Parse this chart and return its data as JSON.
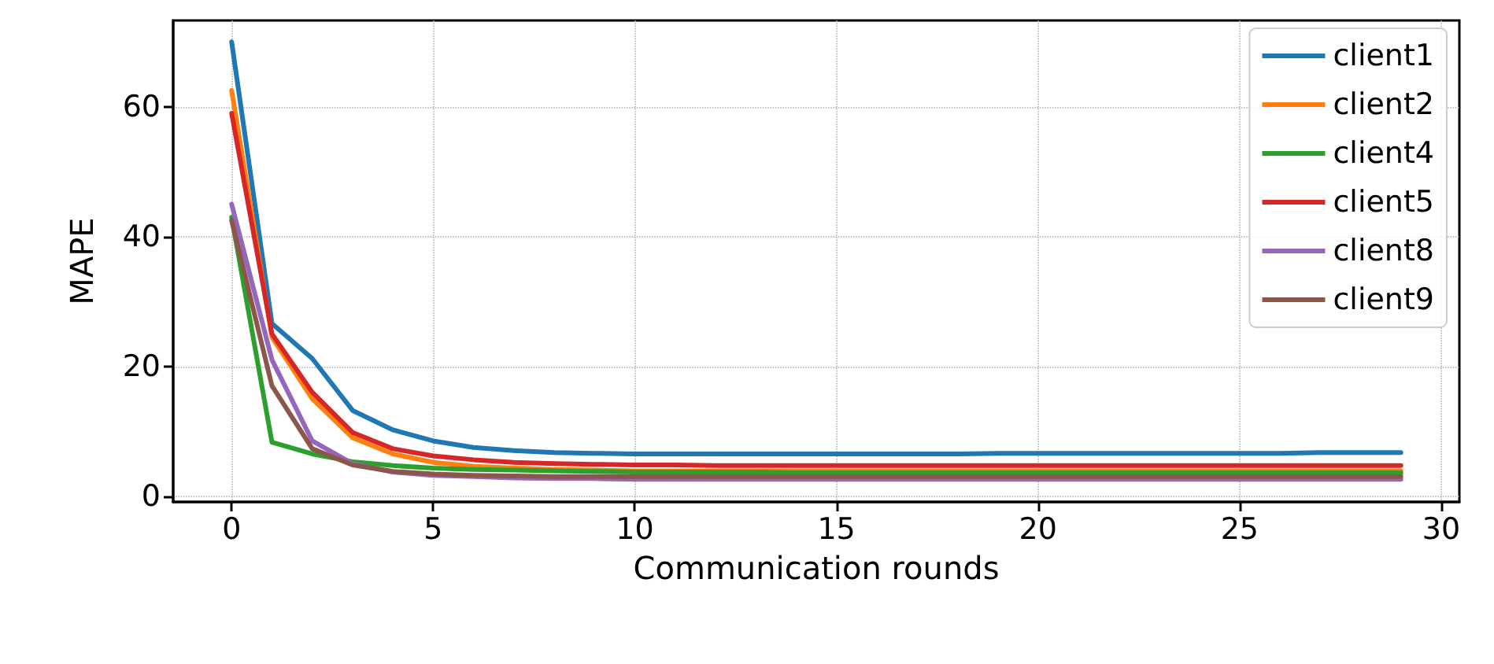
{
  "chart_data": {
    "type": "line",
    "xlabel": "Communication rounds",
    "ylabel": "MAPE",
    "x": [
      0,
      1,
      2,
      3,
      4,
      5,
      6,
      7,
      8,
      9,
      10,
      11,
      12,
      13,
      14,
      15,
      16,
      17,
      18,
      19,
      20,
      21,
      22,
      23,
      24,
      25,
      26,
      27,
      28,
      29
    ],
    "series": [
      {
        "name": "client1",
        "color": "#1f77b4",
        "values": [
          70,
          26.6,
          21.2,
          13.2,
          10.2,
          8.5,
          7.5,
          7,
          6.7,
          6.6,
          6.5,
          6.5,
          6.5,
          6.5,
          6.5,
          6.5,
          6.5,
          6.5,
          6.5,
          6.6,
          6.6,
          6.6,
          6.6,
          6.6,
          6.6,
          6.6,
          6.6,
          6.7,
          6.7,
          6.7
        ]
      },
      {
        "name": "client2",
        "color": "#ff7f0e",
        "values": [
          62.5,
          24.5,
          15,
          9,
          6.5,
          5.2,
          4.6,
          4.3,
          4.1,
          4,
          3.9,
          3.9,
          3.9,
          3.9,
          3.9,
          3.9,
          3.9,
          3.9,
          3.9,
          3.9,
          3.9,
          3.9,
          3.9,
          3.9,
          3.9,
          3.9,
          3.9,
          3.9,
          3.9,
          3.9
        ]
      },
      {
        "name": "client4",
        "color": "#2ca02c",
        "values": [
          43,
          8.3,
          6.5,
          5.3,
          4.7,
          4.3,
          4.1,
          4,
          3.9,
          3.8,
          3.7,
          3.7,
          3.7,
          3.7,
          3.6,
          3.6,
          3.6,
          3.6,
          3.6,
          3.6,
          3.6,
          3.6,
          3.6,
          3.6,
          3.6,
          3.6,
          3.6,
          3.6,
          3.6,
          3.6
        ]
      },
      {
        "name": "client5",
        "color": "#d62728",
        "values": [
          59,
          25,
          16,
          9.8,
          7.3,
          6.2,
          5.6,
          5.2,
          5,
          4.9,
          4.8,
          4.8,
          4.7,
          4.7,
          4.7,
          4.7,
          4.7,
          4.7,
          4.7,
          4.7,
          4.7,
          4.7,
          4.7,
          4.7,
          4.7,
          4.7,
          4.7,
          4.7,
          4.7,
          4.7
        ]
      },
      {
        "name": "client8",
        "color": "#9467bd",
        "values": [
          45,
          21,
          8.5,
          5,
          3.7,
          3.2,
          3,
          2.8,
          2.7,
          2.7,
          2.6,
          2.6,
          2.6,
          2.6,
          2.6,
          2.6,
          2.6,
          2.6,
          2.6,
          2.6,
          2.6,
          2.6,
          2.6,
          2.6,
          2.6,
          2.6,
          2.6,
          2.6,
          2.6,
          2.6
        ]
      },
      {
        "name": "client9",
        "color": "#8c564b",
        "values": [
          42.5,
          17,
          7.3,
          4.8,
          3.8,
          3.4,
          3.2,
          3.1,
          3,
          3,
          3,
          3,
          3,
          3,
          3,
          3,
          3,
          3,
          3,
          3,
          3,
          3,
          3,
          3,
          3,
          3,
          3,
          3,
          3,
          3
        ]
      }
    ],
    "xlim": [
      -1.45,
      30.45
    ],
    "ylim": [
      -0.9,
      73.3
    ],
    "xticks": [
      0,
      5,
      10,
      15,
      20,
      25,
      30
    ],
    "yticks": [
      0,
      20,
      40,
      60
    ],
    "grid": true,
    "legend": "top right",
    "marker": "none",
    "line_style": "solid"
  }
}
